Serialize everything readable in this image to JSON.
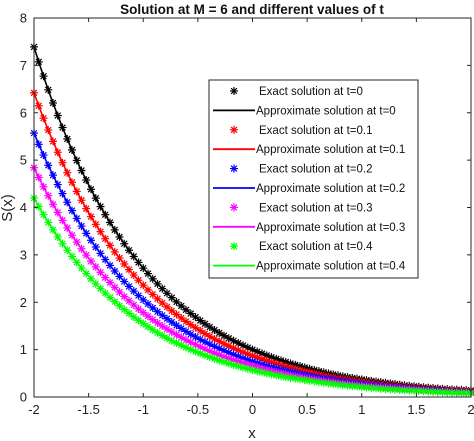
{
  "chart_data": {
    "type": "line",
    "title": "Solution at M = 6 and different values of t",
    "xlabel": "x",
    "ylabel": "S(x)",
    "xlim": [
      -2,
      2
    ],
    "ylim": [
      0,
      8
    ],
    "xticks": [
      "-2",
      "-1.5",
      "-1",
      "-0.5",
      "0",
      "0.5",
      "1",
      "1.5",
      "2"
    ],
    "yticks": [
      "0",
      "1",
      "2",
      "3",
      "4",
      "5",
      "6",
      "7",
      "8"
    ],
    "grid": false,
    "legend_position": "top-right",
    "x": [
      -2.0,
      -1.75,
      -1.5,
      -1.25,
      -1.0,
      -0.75,
      -0.5,
      -0.25,
      0.0,
      0.25,
      0.5,
      0.75,
      1.0,
      1.25,
      1.5,
      1.75,
      2.0
    ],
    "series": [
      {
        "t": "0",
        "color": "#000000",
        "values": [
          7.39,
          5.75,
          4.48,
          3.49,
          2.72,
          2.12,
          1.65,
          1.28,
          1.0,
          0.78,
          0.61,
          0.47,
          0.37,
          0.29,
          0.22,
          0.17,
          0.14
        ],
        "exact_label": "Exact solution at t=0",
        "approx_label": "Approximate solution at t=0"
      },
      {
        "t": "0.1",
        "color": "#ff0000",
        "values": [
          6.42,
          5.0,
          3.89,
          3.03,
          2.36,
          1.84,
          1.43,
          1.11,
          0.87,
          0.68,
          0.53,
          0.41,
          0.32,
          0.25,
          0.19,
          0.15,
          0.12
        ],
        "exact_label": "Exact solution at t=0.1",
        "approx_label": "Approximate solution at t=0.1"
      },
      {
        "t": "0.2",
        "color": "#0000ff",
        "values": [
          5.57,
          4.34,
          3.38,
          2.63,
          2.05,
          1.6,
          1.24,
          0.97,
          0.75,
          0.59,
          0.46,
          0.36,
          0.28,
          0.22,
          0.17,
          0.13,
          0.1
        ],
        "exact_label": "Exact solution at t=0.2",
        "approx_label": "Approximate solution at t=0.2"
      },
      {
        "t": "0.3",
        "color": "#ff00ff",
        "values": [
          4.84,
          3.77,
          2.93,
          2.29,
          1.78,
          1.39,
          1.08,
          0.84,
          0.66,
          0.51,
          0.4,
          0.31,
          0.24,
          0.19,
          0.15,
          0.11,
          0.09
        ],
        "exact_label": "Exact solution at t=0.3",
        "approx_label": "Approximate solution at t=0.3"
      },
      {
        "t": "0.4",
        "color": "#00ff00",
        "values": [
          4.2,
          3.27,
          2.55,
          1.99,
          1.55,
          1.2,
          0.94,
          0.73,
          0.57,
          0.44,
          0.35,
          0.27,
          0.21,
          0.16,
          0.13,
          0.1,
          0.08
        ],
        "exact_label": "Exact solution at t=0.4",
        "approx_label": "Approximate solution at t=0.4"
      }
    ]
  }
}
